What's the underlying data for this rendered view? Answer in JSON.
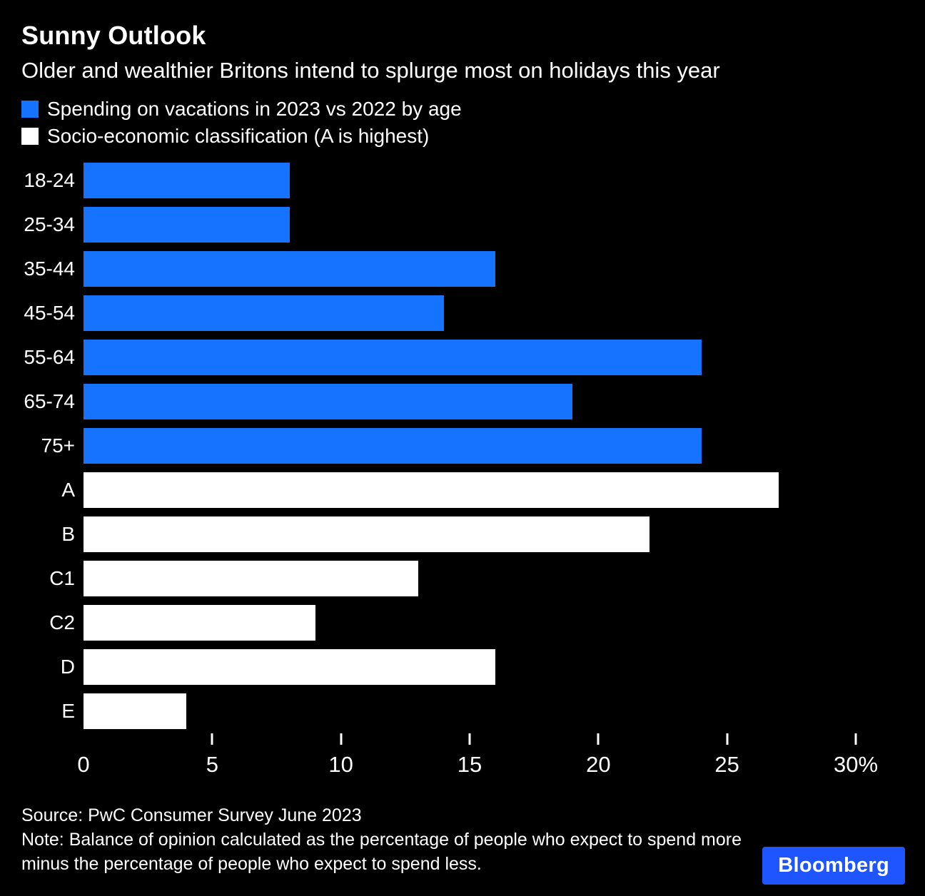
{
  "header": {
    "title": "Sunny Outlook",
    "subtitle": "Older and wealthier Britons intend to splurge most on holidays this year"
  },
  "legend": [
    {
      "label": "Spending on vacations in 2023 vs 2022 by age",
      "color": "#1673ff"
    },
    {
      "label": "Socio-economic classification (A is highest)",
      "color": "#ffffff"
    }
  ],
  "chart_data": {
    "type": "bar",
    "orientation": "horizontal",
    "title": "Sunny Outlook",
    "subtitle": "Older and wealthier Britons intend to splurge most on holidays this year",
    "categories": [
      "18-24",
      "25-34",
      "35-44",
      "45-54",
      "55-64",
      "65-74",
      "75+",
      "A",
      "B",
      "C1",
      "C2",
      "D",
      "E"
    ],
    "values": [
      8,
      8,
      16,
      14,
      24,
      19,
      24,
      27,
      22,
      13,
      9,
      16,
      4
    ],
    "groups": [
      "age",
      "age",
      "age",
      "age",
      "age",
      "age",
      "age",
      "sec",
      "sec",
      "sec",
      "sec",
      "sec",
      "sec"
    ],
    "xlim": [
      0,
      30
    ],
    "ticks": [
      {
        "value": 0,
        "label": "0",
        "mark": false
      },
      {
        "value": 5,
        "label": "5",
        "mark": true
      },
      {
        "value": 10,
        "label": "10",
        "mark": true
      },
      {
        "value": 15,
        "label": "15",
        "mark": true
      },
      {
        "value": 20,
        "label": "20",
        "mark": true
      },
      {
        "value": 25,
        "label": "25",
        "mark": true
      },
      {
        "value": 30,
        "label": "30%",
        "mark": true
      }
    ],
    "grid": false,
    "legend_position": "top-left"
  },
  "colors": {
    "background": "#000000",
    "text": "#ffffff",
    "bar_blue": "#1673ff",
    "bar_white": "#ffffff",
    "logo_blue": "#1f55ff"
  },
  "footer": {
    "source": "Source: PwC Consumer Survey June 2023",
    "note": "Note: Balance of opinion calculated as the percentage of people who expect to spend more minus the percentage of people who expect to spend less.",
    "logo": "Bloomberg"
  }
}
